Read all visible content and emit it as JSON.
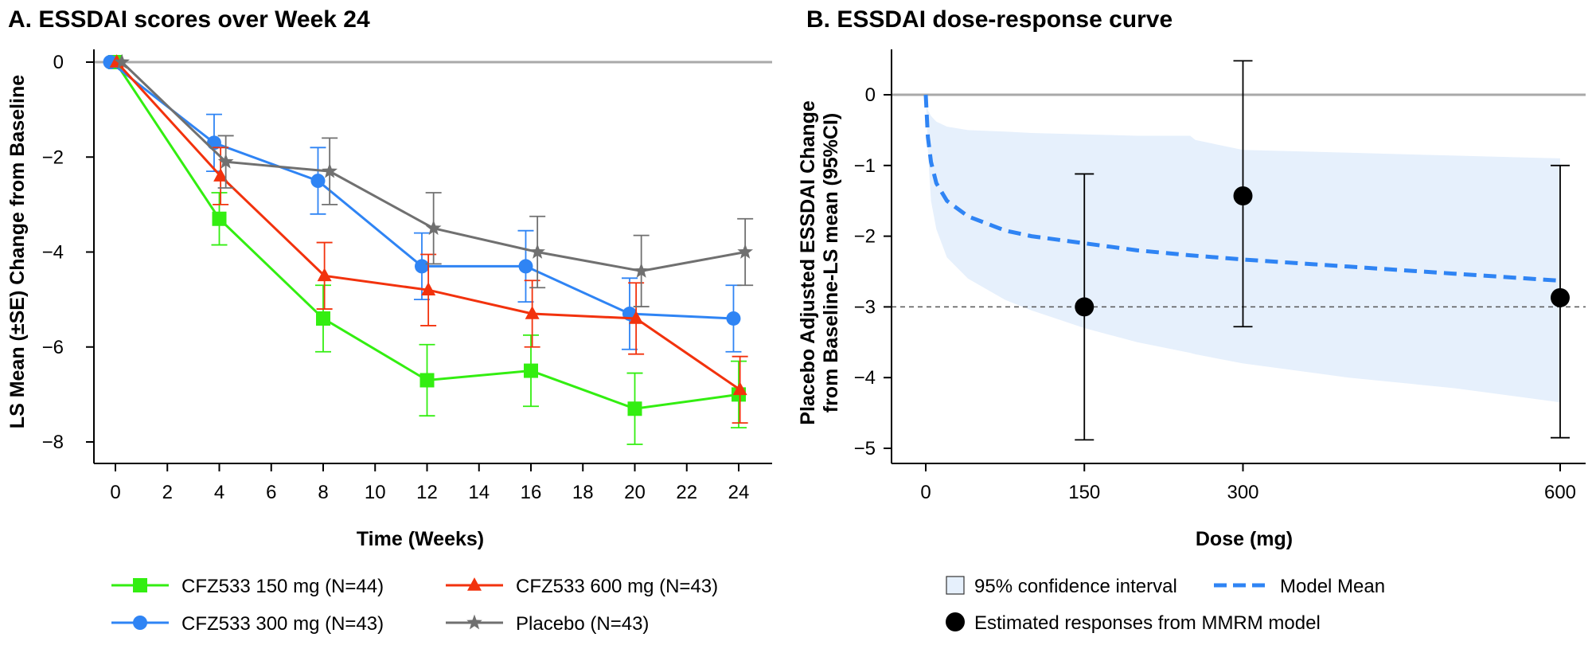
{
  "chart_data": [
    {
      "type": "line",
      "title": "A. ESSDAI scores over Week 24",
      "xlabel": "Time (Weeks)",
      "ylabel": "LS Mean (±SE) Change from Baseline",
      "xlim": [
        -1,
        25.5
      ],
      "ylim": [
        -8.6,
        0.3
      ],
      "xticks": [
        0,
        2,
        4,
        6,
        8,
        10,
        12,
        14,
        16,
        18,
        20,
        22,
        24
      ],
      "yticks": [
        0,
        -2,
        -4,
        -6,
        -8
      ],
      "reference_line": 0,
      "legend_position": "bottom",
      "series": [
        {
          "name": "CFZ533 150 mg (N=44)",
          "color": "#33ee11",
          "marker": "square",
          "x": [
            0,
            4,
            8,
            12,
            16,
            20,
            24
          ],
          "y": [
            0,
            -3.3,
            -5.4,
            -6.7,
            -6.5,
            -7.3,
            -7.0
          ],
          "se": [
            0,
            0.55,
            0.7,
            0.75,
            0.75,
            0.75,
            0.7
          ]
        },
        {
          "name": "CFZ533 300 mg (N=43)",
          "color": "#2f84f4",
          "marker": "circle",
          "x": [
            0,
            4,
            8,
            12,
            16,
            20,
            24
          ],
          "y": [
            0,
            -1.7,
            -2.5,
            -4.3,
            -4.3,
            -5.3,
            -5.4
          ],
          "se": [
            0,
            0.6,
            0.7,
            0.7,
            0.75,
            0.75,
            0.7
          ]
        },
        {
          "name": "CFZ533 600 mg (N=43)",
          "color": "#f2320d",
          "marker": "triangle",
          "x": [
            0,
            4,
            8,
            12,
            16,
            20,
            24
          ],
          "y": [
            0,
            -2.4,
            -4.5,
            -4.8,
            -5.3,
            -5.4,
            -6.9
          ],
          "se": [
            0,
            0.6,
            0.7,
            0.75,
            0.7,
            0.75,
            0.7
          ]
        },
        {
          "name": "Placebo (N=43)",
          "color": "#707070",
          "marker": "star",
          "x": [
            0,
            4,
            8,
            12,
            16,
            20,
            24
          ],
          "y": [
            0,
            -2.1,
            -2.3,
            -3.5,
            -4.0,
            -4.4,
            -4.0
          ],
          "se": [
            0,
            0.55,
            0.7,
            0.75,
            0.75,
            0.75,
            0.7
          ]
        }
      ]
    },
    {
      "type": "line",
      "title": "B. ESSDAI dose-response curve",
      "xlabel": "Dose (mg)",
      "ylabel_line1": "Placebo Adjusted ESSDAI Change",
      "ylabel_line2": "from Baseline-LS mean (95%CI)",
      "xlim": [
        -20,
        615
      ],
      "ylim": [
        -5.4,
        0.6
      ],
      "xticks": [
        0,
        150,
        300,
        600
      ],
      "yticks": [
        0,
        -1,
        -2,
        -3,
        -4,
        -5
      ],
      "reference_line": 0,
      "dashed_reference_line": -3,
      "legend_position": "bottom",
      "model_mean": {
        "name": "Model Mean",
        "color": "#2f84f4",
        "x": [
          0,
          2,
          5,
          10,
          20,
          40,
          75,
          100,
          150,
          200,
          250,
          300,
          400,
          500,
          600
        ],
        "y": [
          0,
          -0.6,
          -0.95,
          -1.25,
          -1.5,
          -1.72,
          -1.92,
          -2.0,
          -2.1,
          -2.2,
          -2.27,
          -2.33,
          -2.43,
          -2.53,
          -2.63
        ]
      },
      "confidence_interval": {
        "name": "95% confidence interval",
        "color": "#e6f0fc",
        "x": [
          0,
          2,
          5,
          10,
          20,
          40,
          75,
          100,
          150,
          200,
          250,
          255,
          300,
          400,
          500,
          600
        ],
        "upper": [
          0,
          -0.22,
          -0.3,
          -0.38,
          -0.45,
          -0.5,
          -0.52,
          -0.54,
          -0.56,
          -0.58,
          -0.58,
          -0.64,
          -0.78,
          -0.82,
          -0.86,
          -0.9
        ],
        "lower": [
          0,
          -0.8,
          -1.5,
          -1.9,
          -2.3,
          -2.6,
          -2.9,
          -3.05,
          -3.3,
          -3.5,
          -3.65,
          -3.67,
          -3.8,
          -4.0,
          -4.15,
          -4.35
        ]
      },
      "estimates": {
        "name": "Estimated responses from MMRM model",
        "color": "#000000",
        "x": [
          150,
          300,
          600
        ],
        "y": [
          -3.0,
          -1.43,
          -2.87
        ],
        "ci_low": [
          -4.88,
          -3.28,
          -4.85
        ],
        "ci_high": [
          -1.12,
          0.48,
          -1.0
        ]
      }
    }
  ]
}
